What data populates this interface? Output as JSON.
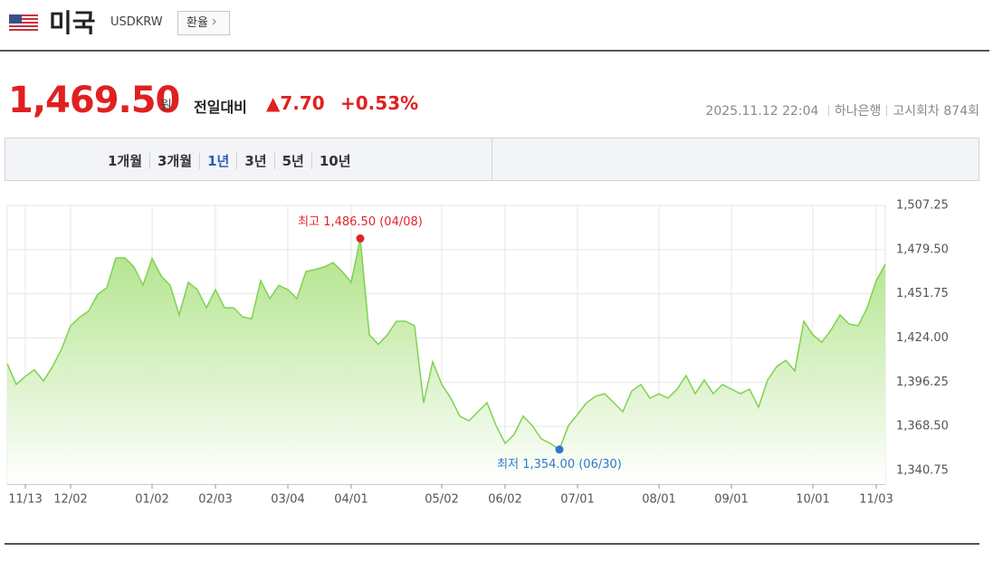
{
  "header": {
    "country": "미국",
    "code": "USDKRW",
    "button": "환율"
  },
  "price": {
    "value": "1,469.50",
    "unit": "원",
    "label": "전일대비",
    "change": "▲7.70",
    "percent": "+0.53%"
  },
  "info": {
    "datetime": "2025.11.12 22:04",
    "bank": "하나은행",
    "round": "고시회차 874회"
  },
  "tabs": {
    "items": [
      "1개월",
      "3개월",
      "1년",
      "3년",
      "5년",
      "10년"
    ],
    "selected": 2
  },
  "chart_data": {
    "type": "area",
    "color": "#7fd24f",
    "grid": true,
    "high_label": "최고 1,486.50 (04/08)",
    "high_color": "#e3232b",
    "low_label": "최저 1,354.00 (06/30)",
    "low_color": "#2e78cc",
    "categories": [
      null,
      null,
      "11/13",
      null,
      null,
      null,
      null,
      "12/02",
      null,
      null,
      null,
      null,
      null,
      null,
      null,
      null,
      "01/02",
      null,
      null,
      null,
      null,
      null,
      null,
      "02/03",
      null,
      null,
      null,
      null,
      null,
      null,
      null,
      "03/04",
      null,
      null,
      null,
      null,
      null,
      null,
      "04/01",
      null,
      null,
      null,
      null,
      null,
      null,
      null,
      null,
      null,
      "05/02",
      null,
      null,
      null,
      null,
      null,
      null,
      "06/02",
      null,
      null,
      null,
      null,
      null,
      null,
      null,
      "07/01",
      null,
      null,
      null,
      null,
      null,
      null,
      null,
      null,
      "08/01",
      null,
      null,
      null,
      null,
      null,
      null,
      null,
      "09/01",
      null,
      null,
      null,
      null,
      null,
      null,
      null,
      null,
      "10/01",
      null,
      null,
      null,
      null,
      null,
      null,
      "11/03",
      null
    ],
    "values": [
      1407.8,
      1394.8,
      1400,
      1404,
      1397,
      1406,
      1417,
      1431.7,
      1437,
      1441,
      1451.5,
      1455.5,
      1474.3,
      1474.3,
      1468.6,
      1457.2,
      1474,
      1463,
      1457,
      1438.5,
      1459,
      1454.4,
      1443,
      1454.4,
      1443,
      1443,
      1437.3,
      1436,
      1460,
      1448.7,
      1457,
      1454.4,
      1448.7,
      1465.8,
      1467,
      1468.6,
      1471.4,
      1465.8,
      1459,
      1486.5,
      1426,
      1420,
      1426,
      1434.5,
      1434.5,
      1431.7,
      1383.4,
      1409,
      1395,
      1386.2,
      1374.9,
      1372,
      1377.7,
      1383.4,
      1369,
      1357.8,
      1363.5,
      1375,
      1369,
      1360.6,
      1357.8,
      1354,
      1369,
      1376,
      1383.4,
      1387.4,
      1389,
      1383.4,
      1377.7,
      1390.8,
      1394.8,
      1386.2,
      1389,
      1386.2,
      1391.9,
      1400.4,
      1389,
      1397.6,
      1389,
      1394.8,
      1391.9,
      1389,
      1391.9,
      1380.5,
      1397.6,
      1406,
      1410,
      1403.4,
      1434.5,
      1426,
      1421.4,
      1429,
      1438.5,
      1432.8,
      1431.7,
      1443,
      1460,
      1470.3
    ],
    "ylim": [
      1332.25,
      1507.25
    ],
    "yticks": [
      {
        "value": 1340.75,
        "label": "1,340.75"
      },
      {
        "value": 1368.5,
        "label": "1,368.50"
      },
      {
        "value": 1396.25,
        "label": "1,396.25"
      },
      {
        "value": 1424,
        "label": "1,424.00"
      },
      {
        "value": 1451.75,
        "label": "1,451.75"
      },
      {
        "value": 1479.5,
        "label": "1,479.50"
      },
      {
        "value": 1507.25,
        "label": "1,507.25"
      }
    ]
  }
}
